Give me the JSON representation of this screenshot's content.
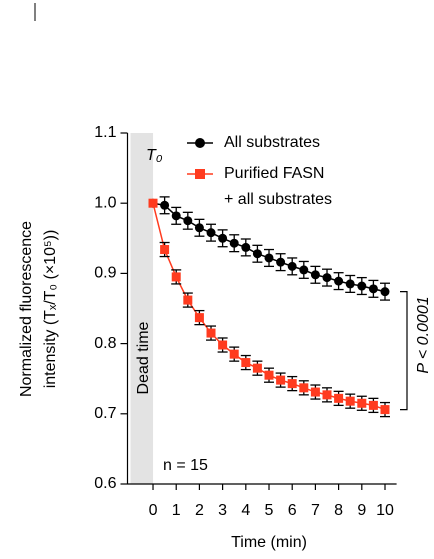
{
  "chart_data": {
    "type": "line",
    "y_label": [
      "Normalized fluorescence",
      "intensity (Tₓ/T₀ (×10⁵))"
    ],
    "x_label": "Time (min)",
    "x": [
      0,
      0.5,
      1,
      1.5,
      2,
      2.5,
      3,
      3.5,
      4,
      4.5,
      5,
      5.5,
      6,
      6.5,
      7,
      7.5,
      8,
      8.5,
      9,
      9.5,
      10
    ],
    "series": [
      {
        "name": "All substrates",
        "color": "#000000",
        "marker": "circle",
        "error": 0.012,
        "values": [
          1.0,
          0.997,
          0.982,
          0.975,
          0.965,
          0.958,
          0.95,
          0.943,
          0.937,
          0.928,
          0.922,
          0.916,
          0.91,
          0.905,
          0.898,
          0.894,
          0.889,
          0.885,
          0.882,
          0.878,
          0.874
        ]
      },
      {
        "name": "Purified FASN\n+ all substrates",
        "color": "#ff3b1f",
        "marker": "square",
        "error": 0.01,
        "values": [
          1.0,
          0.934,
          0.895,
          0.862,
          0.837,
          0.815,
          0.798,
          0.785,
          0.773,
          0.765,
          0.755,
          0.748,
          0.743,
          0.737,
          0.731,
          0.727,
          0.722,
          0.718,
          0.715,
          0.712,
          0.706
        ]
      }
    ],
    "xlim": [
      -1.1,
      10.5
    ],
    "xticks": [
      0,
      1,
      2,
      3,
      4,
      5,
      6,
      7,
      8,
      9,
      10
    ],
    "ylim": [
      0.6,
      1.1
    ],
    "yticks": [
      0.6,
      0.7,
      0.8,
      0.9,
      {
        "value": 1,
        "label": "1.0"
      },
      1.1
    ],
    "annotations": {
      "t0": "T₀",
      "dead_time": "Dead time",
      "n": "n = 15",
      "p": "P < 0.0001"
    }
  }
}
